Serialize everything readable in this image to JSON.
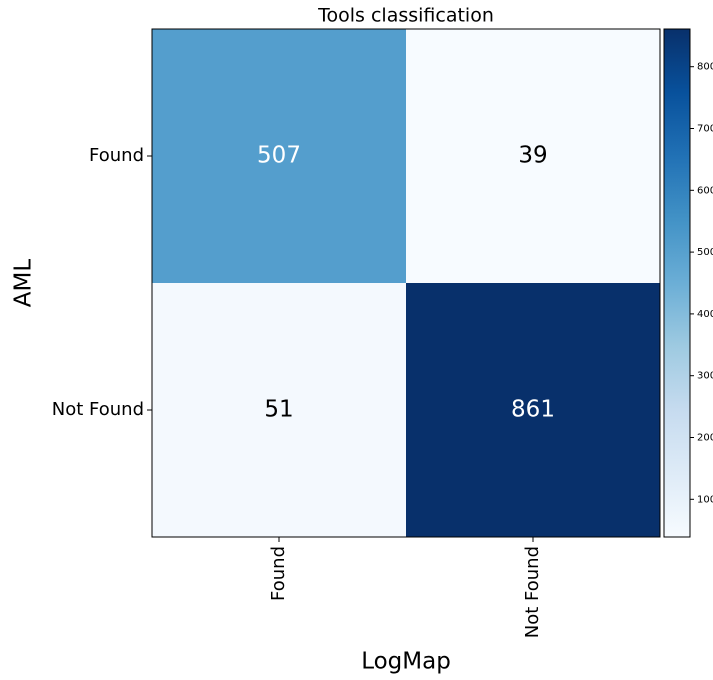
{
  "chart_data": {
    "type": "heatmap",
    "title": "Tools classification",
    "x_label": "LogMap",
    "y_label": "AML",
    "x_categories": [
      "Found",
      "Not Found"
    ],
    "y_categories": [
      "Found",
      "Not Found"
    ],
    "values": [
      [
        507,
        39
      ],
      [
        51,
        861
      ]
    ],
    "clim": [
      39,
      861
    ],
    "cticks": [
      100,
      200,
      300,
      400,
      500,
      600,
      700,
      800
    ],
    "colorscale": [
      "#f7fbff",
      "#deebf7",
      "#c6dbef",
      "#9ecae1",
      "#6baed6",
      "#4292c6",
      "#2171b5",
      "#08519c",
      "#08306b"
    ]
  }
}
